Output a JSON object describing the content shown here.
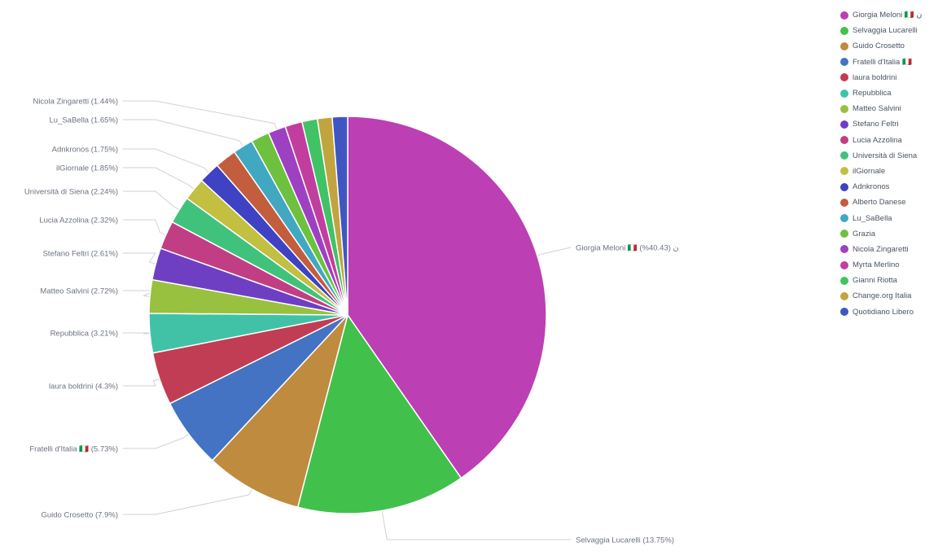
{
  "chart_data": {
    "type": "pie",
    "legend_position": "top-right",
    "slices": [
      {
        "label": "Giorgia Meloni 🇮🇹 ن",
        "value": 40.43,
        "color": "#bc3fb4",
        "callout": "Giorgia Meloni 🇮🇹 (%40.43) ن"
      },
      {
        "label": "Selvaggia Lucarelli",
        "value": 13.75,
        "color": "#41c14b",
        "callout": "Selvaggia Lucarelli (13.75%)"
      },
      {
        "label": "Guido Crosetto",
        "value": 7.9,
        "color": "#bf8b3f",
        "callout": "Guido Crosetto (7.9%)"
      },
      {
        "label": "Fratelli d'Italia 🇮🇹",
        "value": 5.73,
        "color": "#4373c2",
        "callout": "Fratelli d'Italia 🇮🇹 (5.73%)"
      },
      {
        "label": "laura boldrini",
        "value": 4.3,
        "color": "#c13d53",
        "callout": "laura boldrini (4.3%)"
      },
      {
        "label": "Repubblica",
        "value": 3.21,
        "color": "#41c2a7",
        "callout": "Repubblica (3.21%)"
      },
      {
        "label": "Matteo Salvini",
        "value": 2.72,
        "color": "#97c13f",
        "callout": "Matteo Salvini (2.72%)"
      },
      {
        "label": "Stefano Feltri",
        "value": 2.61,
        "color": "#6f3fc3",
        "callout": "Stefano Feltri (2.61%)"
      },
      {
        "label": "Lucia Azzolina",
        "value": 2.32,
        "color": "#c23e84",
        "callout": "Lucia Azzolina (2.32%)"
      },
      {
        "label": "Università di Siena",
        "value": 2.24,
        "color": "#41c27c",
        "callout": "Università di Siena (2.24%)"
      },
      {
        "label": "ilGiornale",
        "value": 1.85,
        "color": "#c2bf41",
        "callout": "ilGiornale (1.85%)"
      },
      {
        "label": "Adnkronos",
        "value": 1.75,
        "color": "#3f42c2",
        "callout": "Adnkronos (1.75%)"
      },
      {
        "label": "Alberto Danese",
        "value": 1.75,
        "color": "#c25d3e",
        "callout": ""
      },
      {
        "label": "Lu_SaBella",
        "value": 1.65,
        "color": "#41a8c2",
        "callout": "Lu_SaBella (1.65%)"
      },
      {
        "label": "Grazia",
        "value": 1.5,
        "color": "#6dc13f",
        "callout": ""
      },
      {
        "label": "Nicola Zingaretti",
        "value": 1.44,
        "color": "#9e40c2",
        "callout": "Nicola Zingaretti (1.44%)"
      },
      {
        "label": "Myrta Merlino",
        "value": 1.4,
        "color": "#c23e9e",
        "callout": ""
      },
      {
        "label": "Gianni Riotta",
        "value": 1.25,
        "color": "#41c265",
        "callout": ""
      },
      {
        "label": "Change.org Italia",
        "value": 1.2,
        "color": "#c2a43f",
        "callout": ""
      },
      {
        "label": "Quotidiano Libero",
        "value": 1.25,
        "color": "#3f56c2",
        "callout": ""
      }
    ]
  }
}
